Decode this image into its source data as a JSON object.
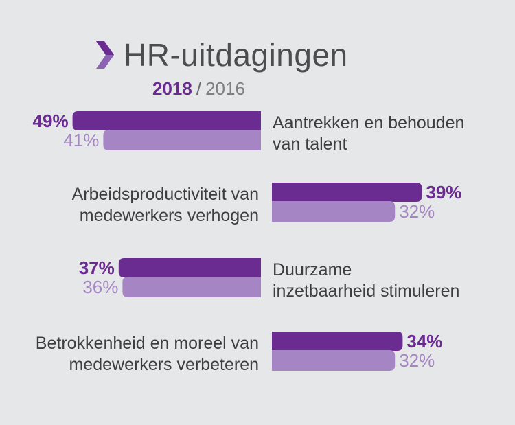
{
  "title": "HR-uitdagingen",
  "title_icon": "chevron-icon",
  "colors": {
    "primary": "#6b2c91",
    "secondary": "#a585c3",
    "text": "#3e3e40",
    "background": "#e6e7e8"
  },
  "legend": {
    "primary_year": "2018",
    "separator": "/",
    "secondary_year": "2016"
  },
  "chart_data": {
    "type": "bar",
    "orientation": "horizontal",
    "categories": [
      "Aantrekken en behouden van talent",
      "Arbeidsproductiviteit van medewerkers verhogen",
      "Duurzame inzetbaarheid stimuleren",
      "Betrokkenheid en moreel van medewerkers verbeteren"
    ],
    "category_lines": [
      [
        "Aantrekken en behouden",
        "van talent"
      ],
      [
        "Arbeidsproductiviteit van",
        "medewerkers verhogen"
      ],
      [
        "Duurzame",
        "inzetbaarheid stimuleren"
      ],
      [
        "Betrokkenheid en moreel van",
        "medewerkers verbeteren"
      ]
    ],
    "series": [
      {
        "name": "2018",
        "values": [
          49,
          39,
          37,
          34
        ],
        "labels": [
          "49%",
          "39%",
          "37%",
          "34%"
        ]
      },
      {
        "name": "2016",
        "values": [
          41,
          32,
          36,
          32
        ],
        "labels": [
          "41%",
          "32%",
          "36%",
          "32%"
        ]
      }
    ],
    "bar_direction": [
      "left",
      "right",
      "left",
      "right"
    ],
    "unit": "%",
    "grid": false,
    "legend_position": "top"
  }
}
